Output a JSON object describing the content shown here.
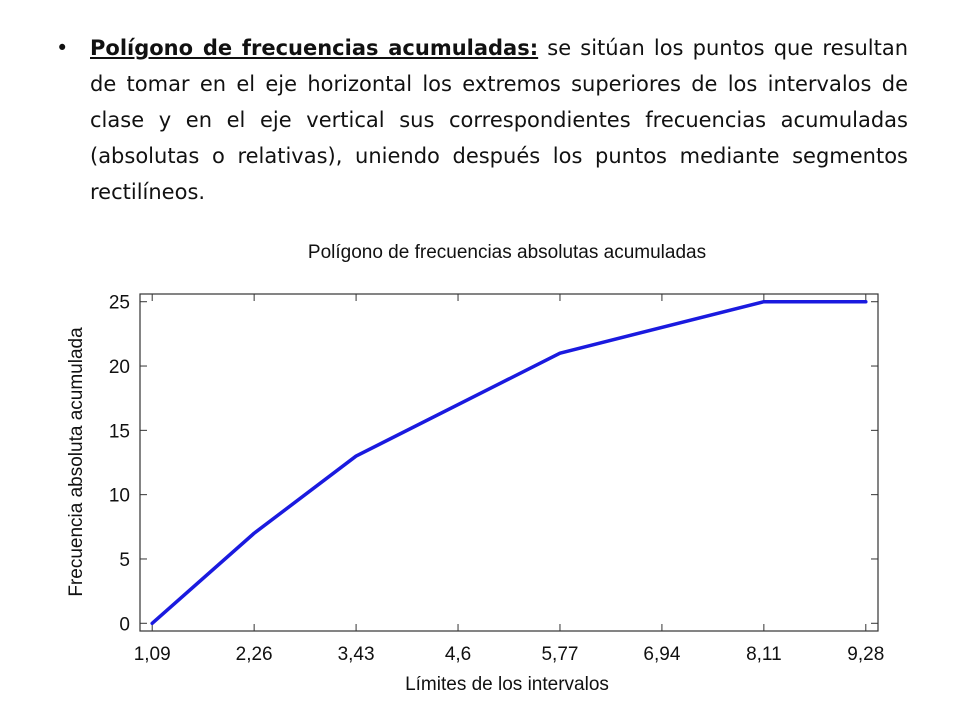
{
  "text": {
    "bullet": "•",
    "term": "Polígono de frecuencias acumuladas:",
    "body": " se sitúan los puntos que resultan de tomar en el eje horizontal los extremos superiores de los intervalos de clase y en el eje vertical sus correspondientes frecuencias acumuladas (absolutas o relativas), uniendo después los puntos mediante segmentos rectilíneos."
  },
  "chart_data": {
    "type": "line",
    "title": "Polígono de frecuencias absolutas acumuladas",
    "xlabel": "Límites de los intervalos",
    "ylabel": "Frecuencia absoluta acumulada",
    "x_tick_labels": [
      "1,09",
      "2,26",
      "3,43",
      "4,6",
      "5,77",
      "6,94",
      "8,11",
      "9,28"
    ],
    "x_ticks": [
      1.09,
      2.26,
      3.43,
      4.6,
      5.77,
      6.94,
      8.11,
      9.28
    ],
    "y_ticks": [
      0,
      5,
      10,
      15,
      20,
      25
    ],
    "xlim": [
      0.95,
      9.42
    ],
    "ylim": [
      -0.6,
      25.6
    ],
    "grid": false,
    "series": [
      {
        "x": [
          1.09,
          2.26,
          3.43,
          5.77,
          8.11,
          9.28
        ],
        "values": [
          0,
          7,
          13,
          21,
          25,
          25
        ],
        "color": "#1a1adf"
      }
    ]
  }
}
